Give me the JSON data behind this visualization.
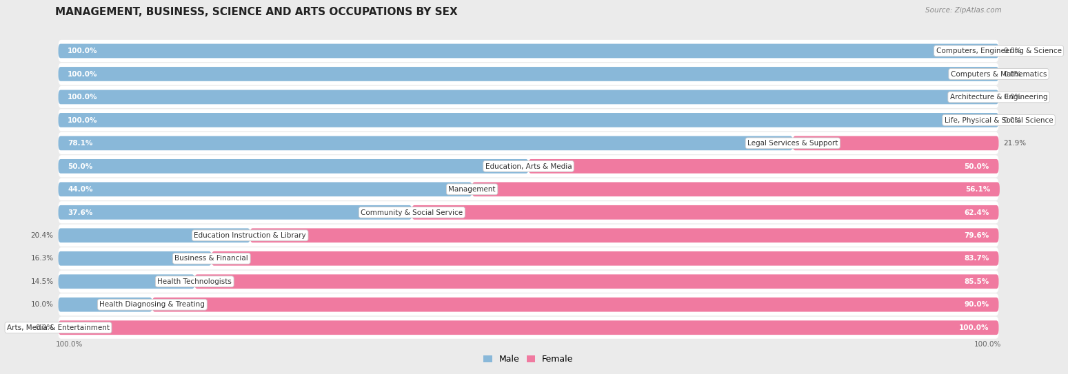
{
  "title": "MANAGEMENT, BUSINESS, SCIENCE AND ARTS OCCUPATIONS BY SEX",
  "source": "Source: ZipAtlas.com",
  "categories": [
    "Computers, Engineering & Science",
    "Computers & Mathematics",
    "Architecture & Engineering",
    "Life, Physical & Social Science",
    "Legal Services & Support",
    "Education, Arts & Media",
    "Management",
    "Community & Social Service",
    "Education Instruction & Library",
    "Business & Financial",
    "Health Technologists",
    "Health Diagnosing & Treating",
    "Arts, Media & Entertainment"
  ],
  "male_pct": [
    100.0,
    100.0,
    100.0,
    100.0,
    78.1,
    50.0,
    44.0,
    37.6,
    20.4,
    16.3,
    14.5,
    10.0,
    0.0
  ],
  "female_pct": [
    0.0,
    0.0,
    0.0,
    0.0,
    21.9,
    50.0,
    56.1,
    62.4,
    79.6,
    83.7,
    85.5,
    90.0,
    100.0
  ],
  "male_color": "#89b8d9",
  "female_color": "#f07aa0",
  "male_label": "Male",
  "female_label": "Female",
  "background_color": "#ebebeb",
  "row_bg_color": "#ffffff",
  "title_fontsize": 11,
  "label_fontsize": 7.5,
  "pct_fontsize": 7.5,
  "source_fontsize": 7.5
}
